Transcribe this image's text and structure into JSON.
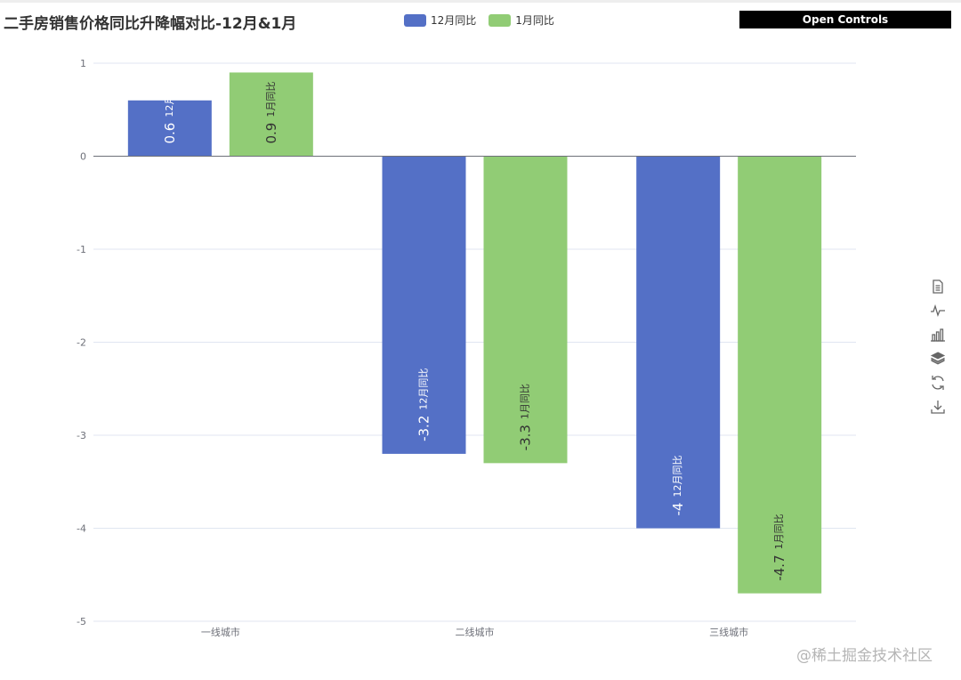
{
  "chart_data": {
    "type": "bar",
    "title": "二手房销售价格同比升降幅对比-12月&1月",
    "categories": [
      "一线城市",
      "二线城市",
      "三线城市"
    ],
    "series": [
      {
        "name": "12月同比",
        "values": [
          0.6,
          -3.2,
          -4.0
        ],
        "labels": [
          "0.6",
          "-3.2",
          "-4"
        ],
        "color": "#5470c6",
        "label_color": "#ffffff"
      },
      {
        "name": "1月同比",
        "values": [
          0.9,
          -3.3,
          -4.7
        ],
        "labels": [
          "0.9",
          "-3.3",
          "-4.7"
        ],
        "color": "#91cc75",
        "label_color": "#333333"
      }
    ],
    "ylim": [
      -5,
      1
    ],
    "yticks": [
      1,
      0,
      -1,
      -2,
      -3,
      -4,
      -5
    ],
    "xlabel": "",
    "ylabel": "",
    "grid": true,
    "legend": "top-center"
  },
  "controls": {
    "open_label": "Open Controls"
  },
  "toolbox": {
    "icons": [
      "data-view-icon",
      "line-chart-icon",
      "bar-chart-icon",
      "stack-icon",
      "restore-icon",
      "save-image-icon"
    ]
  },
  "watermark": "@稀土掘金技术社区"
}
